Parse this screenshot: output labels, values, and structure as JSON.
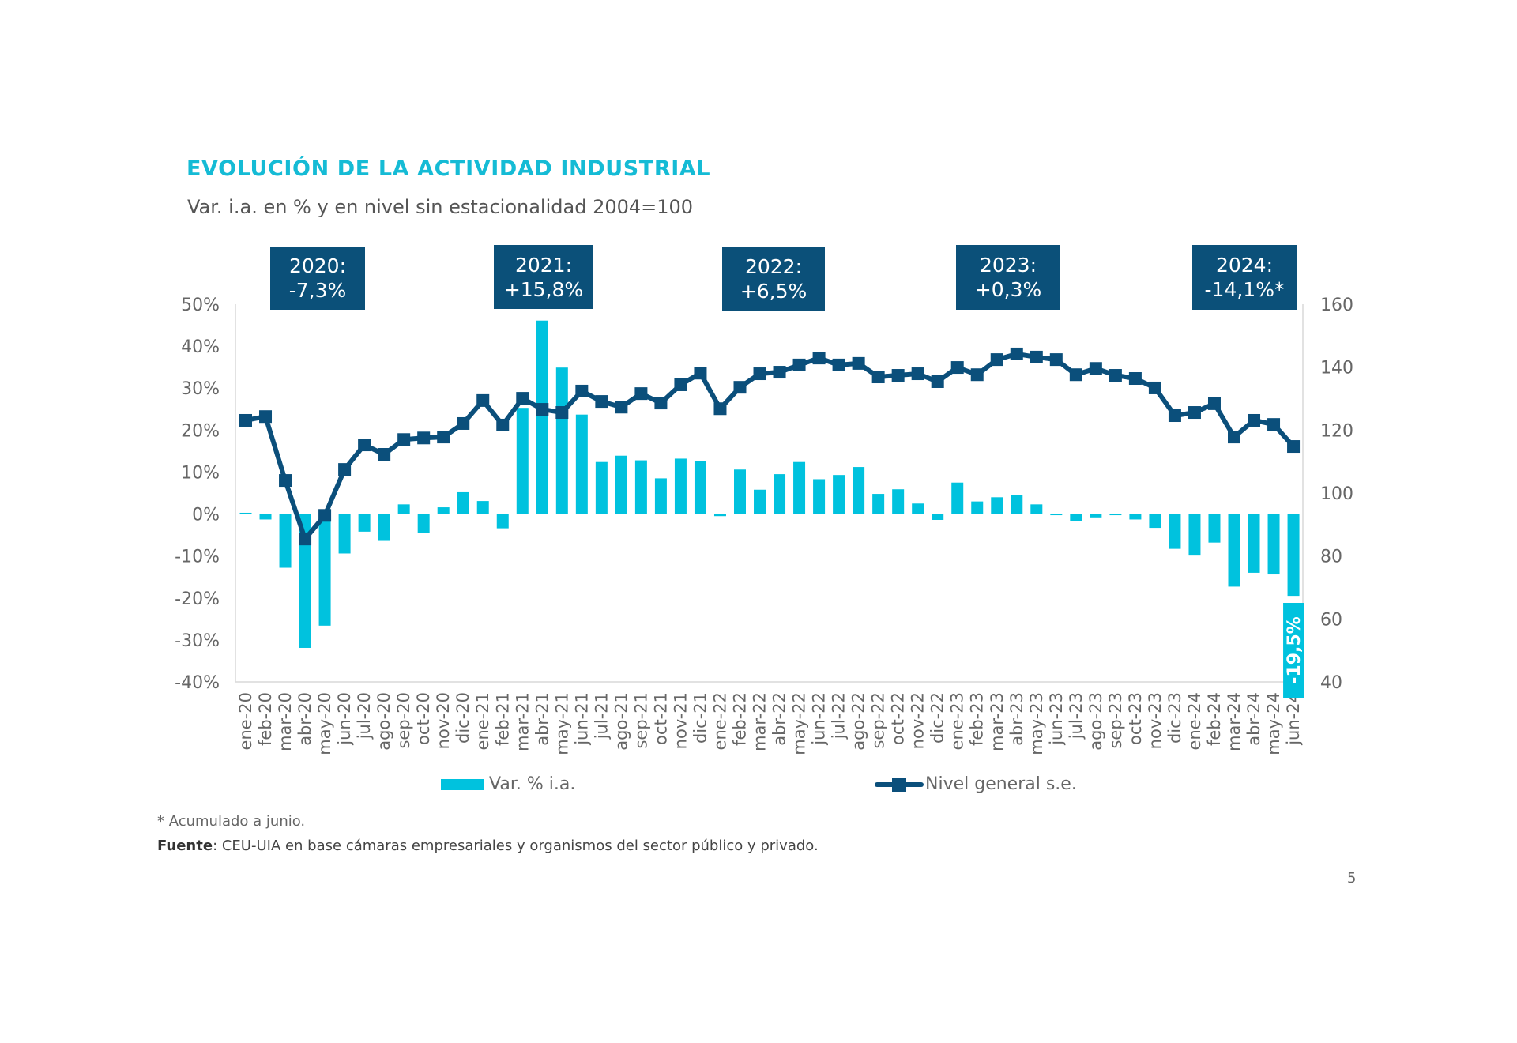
{
  "header": {
    "title": "EVOLUCIÓN DE LA ACTIVIDAD INDUSTRIAL",
    "subtitle": "Var. i.a. en % y en nivel sin estacionalidad 2004=100"
  },
  "annual_boxes": [
    {
      "year": "2020:",
      "value": "-7,3%",
      "bold": true
    },
    {
      "year": "2021:",
      "value": "+15,8%",
      "bold": true
    },
    {
      "year": "2022:",
      "value": "+6,5%",
      "bold": true
    },
    {
      "year": "2023:",
      "value": "+0,3%",
      "bold": false
    },
    {
      "year": "2024:",
      "value": "-14,1%*",
      "bold": false
    }
  ],
  "colors": {
    "bars": "#00C2DE",
    "line": "#0B4F7B",
    "title": "#15BBD5",
    "box": "#0B5079"
  },
  "chart_data": {
    "type": "bar+line",
    "title": "EVOLUCIÓN DE LA ACTIVIDAD INDUSTRIAL",
    "subtitle": "Var. i.a. en % y en nivel sin estacionalidad 2004=100",
    "categories": [
      "ene-20",
      "feb-20",
      "mar-20",
      "abr-20",
      "may-20",
      "jun-20",
      "jul-20",
      "ago-20",
      "sep-20",
      "oct-20",
      "nov-20",
      "dic-20",
      "ene-21",
      "feb-21",
      "mar-21",
      "abr-21",
      "may-21",
      "jun-21",
      "jul-21",
      "ago-21",
      "sep-21",
      "oct-21",
      "nov-21",
      "dic-21",
      "ene-22",
      "feb-22",
      "mar-22",
      "abr-22",
      "may-22",
      "jun-22",
      "jul-22",
      "ago-22",
      "sep-22",
      "oct-22",
      "nov-22",
      "dic-22",
      "ene-23",
      "feb-23",
      "mar-23",
      "abr-23",
      "may-23",
      "jun-23",
      "jul-23",
      "ago-23",
      "sep-23",
      "oct-23",
      "nov-23",
      "dic-23",
      "ene-24",
      "feb-24",
      "mar-24",
      "abr-24",
      "may-24",
      "jun-24"
    ],
    "series": [
      {
        "name": "Var. % i.a.",
        "type": "bar",
        "axis": "left",
        "values": [
          0.3,
          -1.3,
          -12.8,
          -31.9,
          -26.6,
          -9.4,
          -4.2,
          -6.4,
          2.3,
          -4.5,
          1.6,
          5.2,
          3.1,
          -3.4,
          25.3,
          46.1,
          34.9,
          23.7,
          12.4,
          13.9,
          12.8,
          8.5,
          13.2,
          12.6,
          -0.5,
          10.6,
          5.8,
          9.5,
          12.4,
          8.3,
          9.3,
          11.2,
          4.8,
          5.9,
          2.5,
          -1.4,
          7.5,
          3.0,
          4.0,
          4.6,
          2.3,
          -0.2,
          -1.6,
          -0.8,
          -0.1,
          -1.3,
          -3.3,
          -8.3,
          -9.9,
          -6.8,
          -17.3,
          -14.0,
          -14.4,
          -19.5
        ]
      },
      {
        "name": "Nivel general s.e.",
        "type": "line",
        "axis": "right",
        "values": [
          123.1,
          124.3,
          104.0,
          85.4,
          92.9,
          107.5,
          115.3,
          112.3,
          117.0,
          117.5,
          117.8,
          122.1,
          129.4,
          121.6,
          130.1,
          126.6,
          125.6,
          132.4,
          129.1,
          127.3,
          131.6,
          128.6,
          134.4,
          138.1,
          126.8,
          133.6,
          137.9,
          138.4,
          140.7,
          142.9,
          140.7,
          141.2,
          136.9,
          137.4,
          137.9,
          135.4,
          139.9,
          137.6,
          142.4,
          144.2,
          143.2,
          142.4,
          137.6,
          139.6,
          137.4,
          136.4,
          133.4,
          124.6,
          125.6,
          128.4,
          117.8,
          123.1,
          121.8,
          114.8
        ]
      }
    ],
    "y_left": {
      "min": -40,
      "max": 50,
      "step": 10,
      "ticks": [
        "50%",
        "40%",
        "30%",
        "20%",
        "10%",
        "0%",
        "-10%",
        "-20%",
        "-30%",
        "-40%"
      ]
    },
    "y_right": {
      "min": 40,
      "max": 160,
      "step": 20,
      "ticks": [
        "160",
        "140",
        "120",
        "100",
        "80",
        "60",
        "40"
      ]
    },
    "data_labels": [
      {
        "category": "jun-24",
        "series": "Var. % i.a.",
        "text": "-19,5%"
      }
    ],
    "legend": {
      "position": "bottom",
      "entries": [
        "Var. % i.a.",
        "Nivel general s.e."
      ]
    },
    "grid": false,
    "xlabel": "",
    "ylabel": ""
  },
  "footer": {
    "note": "* Acumulado a junio.",
    "source_label": "Fuente",
    "source_text": ": CEU-UIA en base cámaras empresariales y organismos del sector público y privado.",
    "page_number": "5"
  }
}
